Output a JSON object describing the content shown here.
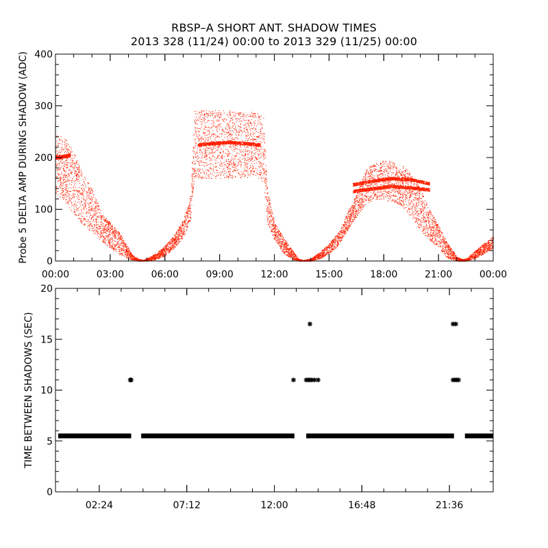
{
  "title_line_1": "RBSP–A SHORT ANT. SHADOW TIMES",
  "title_line_2": "2013 328 (11/24) 00:00 to 2013 329 (11/25) 00:00",
  "colors": {
    "points": "#ff2000",
    "axes": "#000000",
    "markers": "#000000",
    "background": "#ffffff"
  },
  "chart_data": [
    {
      "type": "scatter",
      "name": "delta-amp",
      "ylabel": "Probe 5 DELTA AMP DURING SHADOW (ADC)",
      "xlabel": "",
      "x_unit": "hours",
      "xlim": [
        0,
        24
      ],
      "ylim": [
        0,
        400
      ],
      "xticks": [
        0,
        3,
        6,
        9,
        12,
        15,
        18,
        21,
        24
      ],
      "xtick_labels": [
        "00:00",
        "03:00",
        "06:00",
        "09:00",
        "12:00",
        "15:00",
        "18:00",
        "21:00",
        "00:00"
      ],
      "yticks": [
        0,
        100,
        200,
        300,
        400
      ],
      "ytick_labels": [
        "0",
        "100",
        "200",
        "300",
        "400"
      ],
      "envelope": {
        "hours": [
          0.0,
          0.5,
          1.0,
          1.5,
          2.0,
          2.5,
          3.0,
          3.5,
          4.0,
          4.2,
          4.5,
          4.8,
          5.0,
          5.5,
          6.0,
          6.5,
          7.0,
          7.4,
          7.6,
          8.0,
          9.0,
          10.0,
          11.0,
          11.4,
          11.6,
          12.0,
          12.5,
          13.0,
          13.3,
          13.6,
          14.0,
          14.5,
          15.0,
          15.5,
          16.0,
          16.5,
          17.0,
          17.5,
          18.0,
          18.5,
          19.0,
          19.5,
          20.0,
          20.5,
          21.0,
          21.5,
          22.0,
          22.3,
          22.5,
          23.0,
          23.5,
          24.0
        ],
        "upper": [
          245,
          240,
          210,
          170,
          140,
          95,
          75,
          55,
          25,
          12,
          5,
          2,
          5,
          15,
          30,
          50,
          80,
          130,
          290,
          292,
          292,
          290,
          288,
          280,
          140,
          75,
          45,
          20,
          5,
          2,
          5,
          18,
          35,
          55,
          95,
          130,
          180,
          188,
          195,
          192,
          185,
          170,
          140,
          100,
          70,
          35,
          8,
          4,
          5,
          20,
          35,
          48
        ],
        "lower": [
          130,
          115,
          90,
          70,
          55,
          40,
          25,
          12,
          5,
          2,
          0,
          0,
          0,
          3,
          10,
          25,
          45,
          80,
          160,
          160,
          160,
          160,
          162,
          150,
          75,
          40,
          15,
          3,
          0,
          0,
          0,
          5,
          15,
          30,
          60,
          85,
          110,
          120,
          118,
          115,
          105,
          85,
          60,
          40,
          25,
          5,
          0,
          0,
          0,
          5,
          15,
          25
        ]
      },
      "dense_bands": [
        {
          "label": "early",
          "hours": [
            0.0,
            0.8
          ],
          "values": [
            200,
            205
          ]
        },
        {
          "label": "noon-top",
          "hours": [
            7.8,
            11.2
          ],
          "values": [
            225,
            228,
            230,
            228,
            225
          ]
        },
        {
          "label": "afternoon-1",
          "hours": [
            16.3,
            20.5
          ],
          "values": [
            148,
            155,
            160,
            158,
            150
          ]
        },
        {
          "label": "afternoon-2",
          "hours": [
            16.3,
            20.5
          ],
          "values": [
            135,
            140,
            145,
            142,
            138
          ]
        }
      ]
    },
    {
      "type": "scatter",
      "name": "time-between-shadows",
      "ylabel": "TIME BETWEEN SHADOWS (SEC)",
      "xlabel": "",
      "x_unit": "hours",
      "xlim": [
        0,
        24
      ],
      "ylim": [
        0,
        20
      ],
      "xticks": [
        2.4,
        7.2,
        12.0,
        16.8,
        21.6
      ],
      "xtick_labels": [
        "02:24",
        "07:12",
        "12:00",
        "16:48",
        "21:36"
      ],
      "yticks": [
        0,
        5,
        10,
        15,
        20
      ],
      "ytick_labels": [
        "0",
        "5",
        "10",
        "15",
        "20"
      ],
      "baseline": {
        "value": 5.5,
        "segments": [
          [
            0.15,
            4.15
          ],
          [
            4.7,
            13.1
          ],
          [
            13.75,
            21.85
          ],
          [
            22.45,
            24.0
          ]
        ]
      },
      "points": [
        {
          "x": 4.1,
          "y": 11.0
        },
        {
          "x": 4.15,
          "y": 11.0
        },
        {
          "x": 13.05,
          "y": 11.0
        },
        {
          "x": 13.75,
          "y": 11.0
        },
        {
          "x": 13.85,
          "y": 11.0
        },
        {
          "x": 13.95,
          "y": 11.0
        },
        {
          "x": 14.05,
          "y": 11.0
        },
        {
          "x": 14.2,
          "y": 11.0
        },
        {
          "x": 14.4,
          "y": 11.0
        },
        {
          "x": 13.95,
          "y": 16.5
        },
        {
          "x": 21.8,
          "y": 16.5
        },
        {
          "x": 21.95,
          "y": 16.5
        },
        {
          "x": 21.8,
          "y": 11.0
        },
        {
          "x": 21.9,
          "y": 11.0
        },
        {
          "x": 22.0,
          "y": 11.0
        },
        {
          "x": 22.1,
          "y": 11.0
        }
      ]
    }
  ]
}
